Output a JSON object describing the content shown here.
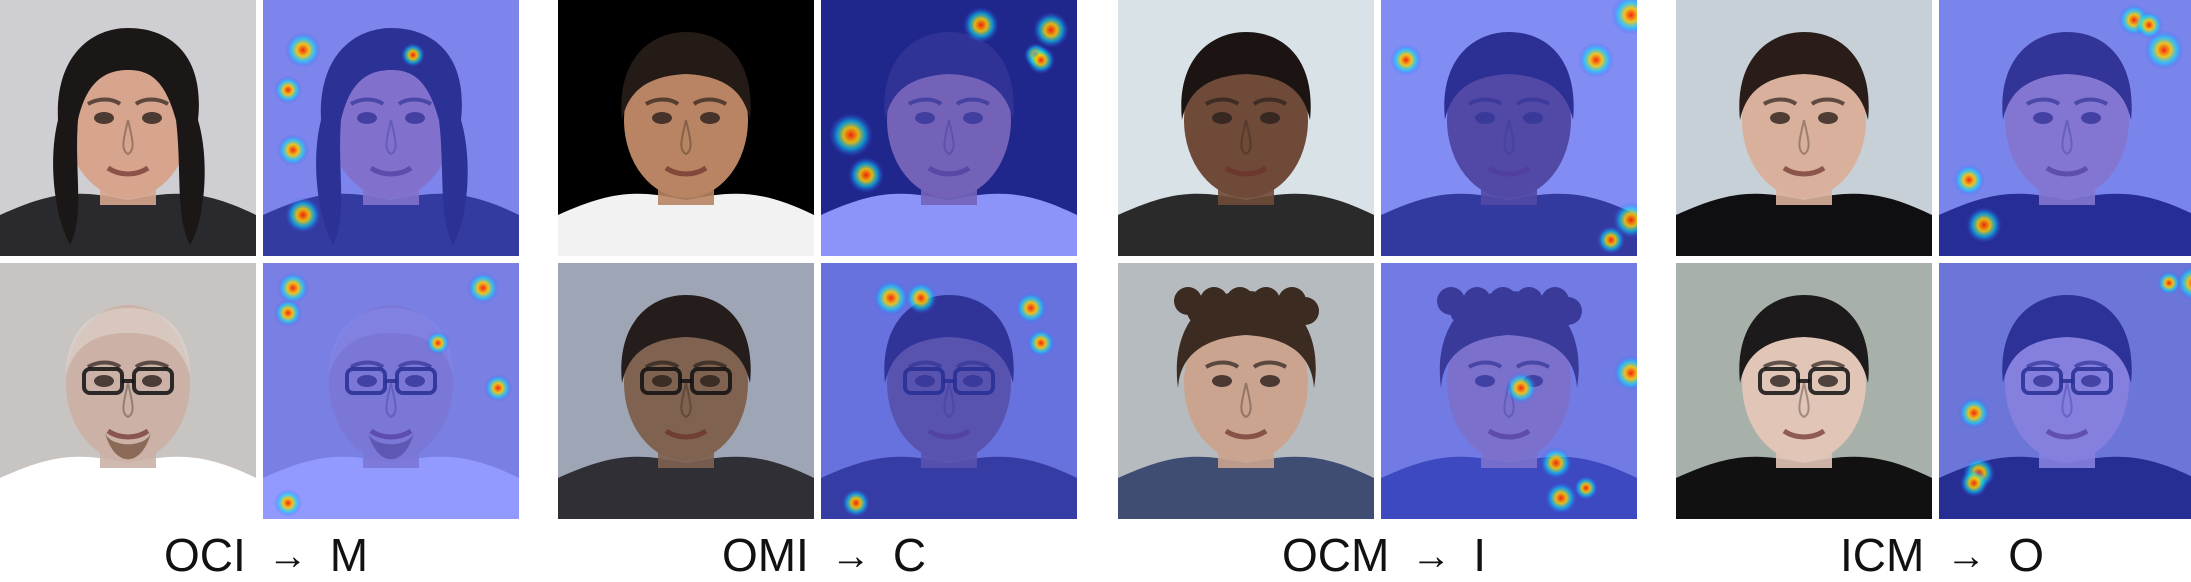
{
  "groups": [
    {
      "id": "g1",
      "source": "OCI",
      "target": "M",
      "arrow": "→",
      "palette": {
        "skin": "#d7a58e",
        "hair": "#1a1716",
        "bg": "#cfcfd3",
        "shirt": "#2a2a2e"
      },
      "palette2": {
        "skin": "#cbb1a6",
        "hair": "#e0d6d0",
        "bg": "#c8c4c2",
        "shirt": "#ffffff"
      }
    },
    {
      "id": "g2",
      "source": "OMI",
      "target": "C",
      "arrow": "→",
      "palette": {
        "skin": "#b88463",
        "hair": "#241a16",
        "bg": "#000000",
        "shirt": "#f2f2f2"
      },
      "palette2": {
        "skin": "#7f6250",
        "hair": "#241d1b",
        "bg": "#9ea6b5",
        "shirt": "#2f2f35"
      }
    },
    {
      "id": "g3",
      "source": "OCM",
      "target": "I",
      "arrow": "→",
      "palette": {
        "skin": "#6f4a39",
        "hair": "#1b1412",
        "bg": "#d9e2e6",
        "shirt": "#2a2a2a"
      },
      "palette2": {
        "skin": "#caa48f",
        "hair": "#3b2b21",
        "bg": "#b6bbc0",
        "shirt": "#3f4d73"
      }
    },
    {
      "id": "g4",
      "source": "ICM",
      "target": "O",
      "arrow": "→",
      "palette": {
        "skin": "#d9b09b",
        "hair": "#2a1d19",
        "bg": "#c7d0d6",
        "shirt": "#0f0f12"
      },
      "palette2": {
        "skin": "#e1c5b7",
        "hair": "#1c1a1a",
        "bg": "#a7b0a9",
        "shirt": "#111111"
      }
    }
  ],
  "colors": {
    "overlay": "#3b47ff",
    "hot": "#ff1f00",
    "warm": "#ffd000",
    "cyan": "#00e5ff"
  }
}
